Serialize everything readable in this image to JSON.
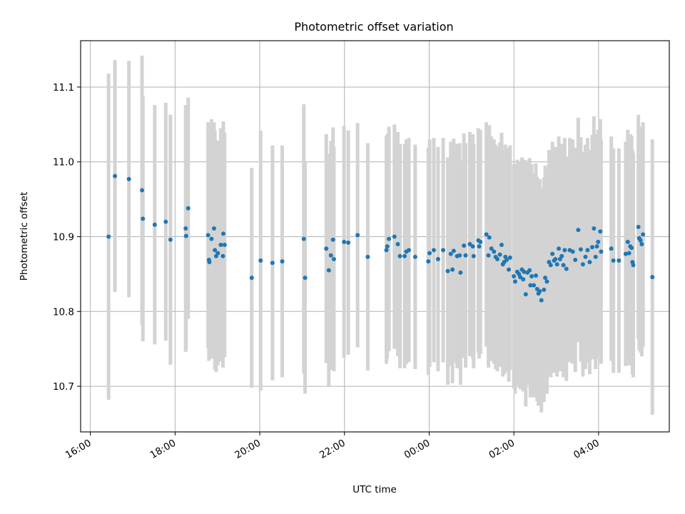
{
  "chart_data": {
    "type": "scatter",
    "title": "Photometric offset variation",
    "xlabel": "UTC time",
    "ylabel": "Photometric offset",
    "grid": true,
    "x_tick_labels": [
      "16:00",
      "18:00",
      "20:00",
      "22:00",
      "00:00",
      "02:00",
      "04:00"
    ],
    "x_tick_hours": [
      16,
      18,
      20,
      22,
      24,
      26,
      28
    ],
    "y_ticks": [
      10.7,
      10.8,
      10.9,
      11.0,
      11.1
    ],
    "y_tick_labels": [
      "10.7",
      "10.8",
      "10.9",
      "11.0",
      "11.1"
    ],
    "xlim": [
      15.77,
      29.67
    ],
    "ylim": [
      10.639,
      11.162
    ],
    "colors": {
      "marker": "#1f77b4",
      "errorbar": "#d3d3d3"
    },
    "series": [
      {
        "points": [
          [
            16.43,
            10.9,
            0.218
          ],
          [
            16.58,
            10.981,
            0.155
          ],
          [
            16.91,
            10.977,
            0.158
          ],
          [
            17.22,
            10.962,
            0.18
          ],
          [
            17.24,
            10.924,
            0.164
          ],
          [
            17.52,
            10.916,
            0.16
          ],
          [
            17.78,
            10.92,
            0.159
          ],
          [
            17.89,
            10.896,
            0.167
          ],
          [
            18.25,
            10.911,
            0.165
          ],
          [
            18.26,
            10.901,
            0.152
          ],
          [
            18.31,
            10.938,
            0.148
          ],
          [
            18.78,
            10.902,
            0.151
          ],
          [
            18.8,
            10.869,
            0.135
          ],
          [
            18.81,
            10.866,
            0.126
          ],
          [
            18.86,
            10.897,
            0.16
          ],
          [
            18.92,
            10.911,
            0.142
          ],
          [
            18.94,
            10.882,
            0.16
          ],
          [
            18.97,
            10.874,
            0.155
          ],
          [
            19.01,
            10.878,
            0.15
          ],
          [
            19.08,
            10.889,
            0.156
          ],
          [
            19.13,
            10.874,
            0.149
          ],
          [
            19.14,
            10.904,
            0.15
          ],
          [
            19.17,
            10.889,
            0.15
          ],
          [
            19.81,
            10.845,
            0.147
          ],
          [
            20.02,
            10.868,
            0.174
          ],
          [
            20.3,
            10.865,
            0.157
          ],
          [
            20.53,
            10.867,
            0.155
          ],
          [
            21.04,
            10.897,
            0.18
          ],
          [
            21.07,
            10.845,
            0.155
          ],
          [
            21.57,
            10.884,
            0.153
          ],
          [
            21.63,
            10.855,
            0.156
          ],
          [
            21.68,
            10.875,
            0.153
          ],
          [
            21.73,
            10.896,
            0.15
          ],
          [
            21.75,
            10.87,
            0.15
          ],
          [
            21.99,
            10.893,
            0.155
          ],
          [
            22.09,
            10.892,
            0.15
          ],
          [
            22.31,
            10.902,
            0.15
          ],
          [
            22.55,
            10.873,
            0.152
          ],
          [
            22.99,
            10.882,
            0.152
          ],
          [
            23.01,
            10.887,
            0.15
          ],
          [
            23.05,
            10.897,
            0.15
          ],
          [
            23.18,
            10.9,
            0.15
          ],
          [
            23.26,
            10.89,
            0.15
          ],
          [
            23.31,
            10.874,
            0.15
          ],
          [
            23.42,
            10.874,
            0.15
          ],
          [
            23.46,
            10.88,
            0.15
          ],
          [
            23.52,
            10.882,
            0.15
          ],
          [
            23.67,
            10.873,
            0.15
          ],
          [
            23.98,
            10.867,
            0.152
          ],
          [
            24.01,
            10.878,
            0.152
          ],
          [
            24.11,
            10.882,
            0.15
          ],
          [
            24.21,
            10.87,
            0.15
          ],
          [
            24.33,
            10.882,
            0.15
          ],
          [
            24.44,
            10.854,
            0.152
          ],
          [
            24.51,
            10.877,
            0.15
          ],
          [
            24.55,
            10.856,
            0.152
          ],
          [
            24.58,
            10.881,
            0.15
          ],
          [
            24.66,
            10.874,
            0.15
          ],
          [
            24.72,
            10.875,
            0.15
          ],
          [
            24.74,
            10.852,
            0.15
          ],
          [
            24.82,
            10.888,
            0.15
          ],
          [
            24.86,
            10.875,
            0.15
          ],
          [
            24.96,
            10.89,
            0.15
          ],
          [
            25.03,
            10.887,
            0.15
          ],
          [
            25.05,
            10.874,
            0.15
          ],
          [
            25.16,
            10.895,
            0.15
          ],
          [
            25.18,
            10.887,
            0.15
          ],
          [
            25.21,
            10.893,
            0.15
          ],
          [
            25.35,
            10.903,
            0.15
          ],
          [
            25.4,
            10.875,
            0.15
          ],
          [
            25.42,
            10.899,
            0.15
          ],
          [
            25.47,
            10.884,
            0.15
          ],
          [
            25.53,
            10.88,
            0.15
          ],
          [
            25.57,
            10.873,
            0.15
          ],
          [
            25.61,
            10.87,
            0.15
          ],
          [
            25.67,
            10.876,
            0.15
          ],
          [
            25.71,
            10.889,
            0.15
          ],
          [
            25.74,
            10.863,
            0.15
          ],
          [
            25.77,
            10.866,
            0.15
          ],
          [
            25.8,
            10.873,
            0.15
          ],
          [
            25.83,
            10.869,
            0.15
          ],
          [
            25.88,
            10.856,
            0.15
          ],
          [
            25.91,
            10.872,
            0.15
          ],
          [
            26.0,
            10.847,
            0.15
          ],
          [
            26.03,
            10.84,
            0.15
          ],
          [
            26.08,
            10.853,
            0.15
          ],
          [
            26.12,
            10.85,
            0.15
          ],
          [
            26.15,
            10.846,
            0.15
          ],
          [
            26.19,
            10.856,
            0.15
          ],
          [
            26.22,
            10.843,
            0.15
          ],
          [
            26.24,
            10.853,
            0.15
          ],
          [
            26.28,
            10.823,
            0.15
          ],
          [
            26.32,
            10.852,
            0.15
          ],
          [
            26.37,
            10.855,
            0.15
          ],
          [
            26.39,
            10.835,
            0.15
          ],
          [
            26.42,
            10.847,
            0.15
          ],
          [
            26.47,
            10.835,
            0.15
          ],
          [
            26.52,
            10.848,
            0.15
          ],
          [
            26.55,
            10.83,
            0.15
          ],
          [
            26.58,
            10.824,
            0.15
          ],
          [
            26.61,
            10.827,
            0.15
          ],
          [
            26.65,
            10.815,
            0.15
          ],
          [
            26.71,
            10.829,
            0.15
          ],
          [
            26.74,
            10.845,
            0.15
          ],
          [
            26.78,
            10.84,
            0.15
          ],
          [
            26.83,
            10.866,
            0.15
          ],
          [
            26.87,
            10.862,
            0.15
          ],
          [
            26.91,
            10.877,
            0.15
          ],
          [
            26.95,
            10.868,
            0.15
          ],
          [
            26.98,
            10.87,
            0.15
          ],
          [
            27.02,
            10.863,
            0.15
          ],
          [
            27.06,
            10.884,
            0.15
          ],
          [
            27.09,
            10.87,
            0.15
          ],
          [
            27.13,
            10.874,
            0.15
          ],
          [
            27.17,
            10.862,
            0.15
          ],
          [
            27.2,
            10.882,
            0.15
          ],
          [
            27.24,
            10.857,
            0.15
          ],
          [
            27.32,
            10.882,
            0.15
          ],
          [
            27.39,
            10.88,
            0.15
          ],
          [
            27.45,
            10.869,
            0.15
          ],
          [
            27.52,
            10.909,
            0.15
          ],
          [
            27.58,
            10.883,
            0.15
          ],
          [
            27.63,
            10.863,
            0.15
          ],
          [
            27.69,
            10.873,
            0.15
          ],
          [
            27.74,
            10.882,
            0.15
          ],
          [
            27.79,
            10.866,
            0.15
          ],
          [
            27.85,
            10.886,
            0.15
          ],
          [
            27.89,
            10.911,
            0.15
          ],
          [
            27.93,
            10.873,
            0.15
          ],
          [
            27.96,
            10.887,
            0.15
          ],
          [
            27.99,
            10.893,
            0.15
          ],
          [
            28.04,
            10.907,
            0.15
          ],
          [
            28.06,
            10.88,
            0.15
          ],
          [
            28.3,
            10.884,
            0.15
          ],
          [
            28.35,
            10.868,
            0.15
          ],
          [
            28.48,
            10.868,
            0.15
          ],
          [
            28.64,
            10.877,
            0.15
          ],
          [
            28.69,
            10.893,
            0.15
          ],
          [
            28.72,
            10.878,
            0.15
          ],
          [
            28.75,
            10.887,
            0.15
          ],
          [
            28.78,
            10.885,
            0.15
          ],
          [
            28.8,
            10.866,
            0.15
          ],
          [
            28.82,
            10.862,
            0.15
          ],
          [
            28.94,
            10.913,
            0.15
          ],
          [
            28.96,
            10.898,
            0.15
          ],
          [
            28.99,
            10.895,
            0.15
          ],
          [
            29.02,
            10.89,
            0.15
          ],
          [
            29.05,
            10.903,
            0.15
          ],
          [
            29.27,
            10.846,
            0.184
          ]
        ]
      }
    ]
  }
}
